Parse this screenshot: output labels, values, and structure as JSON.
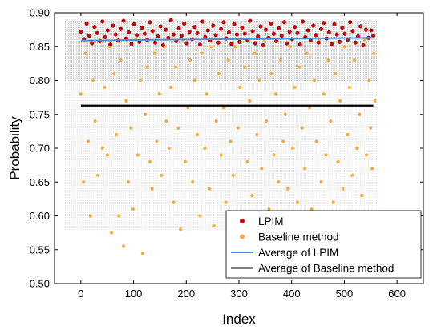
{
  "chart_data": {
    "type": "scatter",
    "title": "",
    "xlabel": "Index",
    "ylabel": "Probability",
    "xlim": [
      -50,
      650
    ],
    "ylim": [
      0.5,
      0.9
    ],
    "x_ticks": [
      0,
      100,
      200,
      300,
      400,
      500,
      600
    ],
    "x_tick_labels": [
      "0",
      "100",
      "200",
      "300",
      "400",
      "500",
      "600"
    ],
    "y_ticks": [
      0.5,
      0.55,
      0.6,
      0.65,
      0.7,
      0.75,
      0.8,
      0.85,
      0.9
    ],
    "y_tick_labels": [
      "0.50",
      "0.55",
      "0.60",
      "0.65",
      "0.70",
      "0.75",
      "0.80",
      "0.85",
      "0.90"
    ],
    "grid": "dense dotted horizontal lines",
    "legend_position": "bottom-right",
    "series": [
      {
        "name": "LPIM",
        "kind": "points",
        "color": "#d10000",
        "points": [
          [
            0,
            0.872
          ],
          [
            6,
            0.861
          ],
          [
            11,
            0.884
          ],
          [
            16,
            0.866
          ],
          [
            21,
            0.855
          ],
          [
            26,
            0.879
          ],
          [
            31,
            0.87
          ],
          [
            36,
            0.858
          ],
          [
            41,
            0.887
          ],
          [
            46,
            0.864
          ],
          [
            51,
            0.874
          ],
          [
            56,
            0.853
          ],
          [
            61,
            0.881
          ],
          [
            66,
            0.868
          ],
          [
            71,
            0.859
          ],
          [
            76,
            0.876
          ],
          [
            81,
            0.888
          ],
          [
            86,
            0.862
          ],
          [
            91,
            0.871
          ],
          [
            96,
            0.854
          ],
          [
            101,
            0.883
          ],
          [
            106,
            0.867
          ],
          [
            111,
            0.857
          ],
          [
            116,
            0.878
          ],
          [
            121,
            0.869
          ],
          [
            126,
            0.86
          ],
          [
            131,
            0.886
          ],
          [
            136,
            0.873
          ],
          [
            141,
            0.856
          ],
          [
            146,
            0.865
          ],
          [
            151,
            0.88
          ],
          [
            156,
            0.852
          ],
          [
            161,
            0.875
          ],
          [
            166,
            0.863
          ],
          [
            171,
            0.889
          ],
          [
            176,
            0.868
          ],
          [
            181,
            0.858
          ],
          [
            186,
            0.877
          ],
          [
            191,
            0.866
          ],
          [
            196,
            0.884
          ],
          [
            201,
            0.855
          ],
          [
            206,
            0.872
          ],
          [
            211,
            0.861
          ],
          [
            216,
            0.879
          ],
          [
            221,
            0.87
          ],
          [
            226,
            0.853
          ],
          [
            231,
            0.887
          ],
          [
            236,
            0.864
          ],
          [
            241,
            0.874
          ],
          [
            246,
            0.859
          ],
          [
            251,
            0.881
          ],
          [
            256,
            0.867
          ],
          [
            261,
            0.856
          ],
          [
            266,
            0.876
          ],
          [
            271,
            0.886
          ],
          [
            276,
            0.862
          ],
          [
            281,
            0.871
          ],
          [
            286,
            0.854
          ],
          [
            291,
            0.883
          ],
          [
            296,
            0.868
          ],
          [
            301,
            0.857
          ],
          [
            306,
            0.878
          ],
          [
            311,
            0.869
          ],
          [
            316,
            0.86
          ],
          [
            321,
            0.888
          ],
          [
            326,
            0.873
          ],
          [
            331,
            0.855
          ],
          [
            336,
            0.865
          ],
          [
            341,
            0.88
          ],
          [
            346,
            0.852
          ],
          [
            351,
            0.875
          ],
          [
            356,
            0.863
          ],
          [
            361,
            0.884
          ],
          [
            366,
            0.869
          ],
          [
            371,
            0.858
          ],
          [
            376,
            0.877
          ],
          [
            381,
            0.866
          ],
          [
            386,
            0.886
          ],
          [
            391,
            0.855
          ],
          [
            396,
            0.872
          ],
          [
            401,
            0.861
          ],
          [
            406,
            0.879
          ],
          [
            411,
            0.87
          ],
          [
            416,
            0.853
          ],
          [
            421,
            0.887
          ],
          [
            426,
            0.864
          ],
          [
            431,
            0.874
          ],
          [
            436,
            0.859
          ],
          [
            441,
            0.881
          ],
          [
            446,
            0.867
          ],
          [
            451,
            0.856
          ],
          [
            456,
            0.876
          ],
          [
            461,
            0.885
          ],
          [
            466,
            0.862
          ],
          [
            471,
            0.871
          ],
          [
            476,
            0.854
          ],
          [
            481,
            0.883
          ],
          [
            486,
            0.868
          ],
          [
            491,
            0.857
          ],
          [
            496,
            0.878
          ],
          [
            501,
            0.869
          ],
          [
            506,
            0.86
          ],
          [
            511,
            0.886
          ],
          [
            516,
            0.873
          ],
          [
            521,
            0.856
          ],
          [
            526,
            0.865
          ],
          [
            531,
            0.88
          ],
          [
            536,
            0.852
          ],
          [
            541,
            0.875
          ],
          [
            546,
            0.863
          ],
          [
            551,
            0.874
          ],
          [
            555,
            0.866
          ]
        ]
      },
      {
        "name": "Baseline method",
        "kind": "points",
        "color": "#f2ac3e",
        "points": [
          [
            0,
            0.78
          ],
          [
            5,
            0.65
          ],
          [
            9,
            0.84
          ],
          [
            14,
            0.71
          ],
          [
            18,
            0.6
          ],
          [
            23,
            0.8
          ],
          [
            27,
            0.74
          ],
          [
            32,
            0.66
          ],
          [
            36,
            0.86
          ],
          [
            41,
            0.7
          ],
          [
            45,
            0.79
          ],
          [
            50,
            0.69
          ],
          [
            54,
            0.85
          ],
          [
            58,
            0.575
          ],
          [
            63,
            0.81
          ],
          [
            67,
            0.72
          ],
          [
            72,
            0.6
          ],
          [
            76,
            0.83
          ],
          [
            81,
            0.555
          ],
          [
            86,
            0.77
          ],
          [
            90,
            0.65
          ],
          [
            95,
            0.73
          ],
          [
            99,
            0.61
          ],
          [
            104,
            0.86
          ],
          [
            108,
            0.69
          ],
          [
            113,
            0.8
          ],
          [
            117,
            0.545
          ],
          [
            122,
            0.75
          ],
          [
            126,
            0.82
          ],
          [
            131,
            0.68
          ],
          [
            135,
            0.64
          ],
          [
            140,
            0.84
          ],
          [
            144,
            0.71
          ],
          [
            149,
            0.78
          ],
          [
            153,
            0.66
          ],
          [
            158,
            0.85
          ],
          [
            162,
            0.74
          ],
          [
            167,
            0.7
          ],
          [
            171,
            0.79
          ],
          [
            176,
            0.62
          ],
          [
            180,
            0.82
          ],
          [
            185,
            0.73
          ],
          [
            189,
            0.58
          ],
          [
            194,
            0.86
          ],
          [
            198,
            0.68
          ],
          [
            203,
            0.76
          ],
          [
            207,
            0.83
          ],
          [
            212,
            0.65
          ],
          [
            216,
            0.8
          ],
          [
            221,
            0.72
          ],
          [
            226,
            0.6
          ],
          [
            230,
            0.84
          ],
          [
            235,
            0.7
          ],
          [
            239,
            0.78
          ],
          [
            244,
            0.64
          ],
          [
            248,
            0.85
          ],
          [
            253,
            0.585
          ],
          [
            257,
            0.74
          ],
          [
            262,
            0.81
          ],
          [
            266,
            0.69
          ],
          [
            271,
            0.76
          ],
          [
            275,
            0.62
          ],
          [
            280,
            0.83
          ],
          [
            284,
            0.71
          ],
          [
            289,
            0.66
          ],
          [
            293,
            0.85
          ],
          [
            298,
            0.73
          ],
          [
            302,
            0.79
          ],
          [
            307,
            0.6
          ],
          [
            311,
            0.82
          ],
          [
            316,
            0.68
          ],
          [
            320,
            0.77
          ],
          [
            325,
            0.63
          ],
          [
            330,
            0.84
          ],
          [
            334,
            0.72
          ],
          [
            339,
            0.8
          ],
          [
            343,
            0.67
          ],
          [
            348,
            0.86
          ],
          [
            352,
            0.74
          ],
          [
            357,
            0.61
          ],
          [
            361,
            0.81
          ],
          [
            366,
            0.69
          ],
          [
            370,
            0.78
          ],
          [
            375,
            0.65
          ],
          [
            379,
            0.83
          ],
          [
            384,
            0.71
          ],
          [
            388,
            0.75
          ],
          [
            393,
            0.64
          ],
          [
            397,
            0.85
          ],
          [
            402,
            0.7
          ],
          [
            406,
            0.79
          ],
          [
            411,
            0.62
          ],
          [
            415,
            0.82
          ],
          [
            420,
            0.73
          ],
          [
            425,
            0.67
          ],
          [
            429,
            0.84
          ],
          [
            434,
            0.76
          ],
          [
            438,
            0.61
          ],
          [
            443,
            0.8
          ],
          [
            447,
            0.71
          ],
          [
            452,
            0.86
          ],
          [
            456,
            0.65
          ],
          [
            461,
            0.78
          ],
          [
            465,
            0.69
          ],
          [
            470,
            0.83
          ],
          [
            474,
            0.74
          ],
          [
            479,
            0.62
          ],
          [
            483,
            0.81
          ],
          [
            488,
            0.68
          ],
          [
            492,
            0.77
          ],
          [
            497,
            0.64
          ],
          [
            501,
            0.85
          ],
          [
            506,
            0.72
          ],
          [
            510,
            0.79
          ],
          [
            515,
            0.66
          ],
          [
            519,
            0.83
          ],
          [
            524,
            0.7
          ],
          [
            529,
            0.75
          ],
          [
            533,
            0.63
          ],
          [
            538,
            0.86
          ],
          [
            542,
            0.69
          ],
          [
            547,
            0.8
          ],
          [
            550,
            0.73
          ],
          [
            553,
            0.67
          ],
          [
            556,
            0.84
          ],
          [
            558,
            0.77
          ]
        ]
      },
      {
        "name": "Average of LPIM",
        "kind": "line",
        "color": "#4a90d9",
        "x": [
          0,
          555
        ],
        "y": [
          0.859,
          0.863
        ]
      },
      {
        "name": "Average of Baseline method",
        "kind": "line",
        "color": "#000000",
        "x": [
          0,
          555
        ],
        "y": [
          0.763,
          0.763
        ]
      }
    ]
  }
}
